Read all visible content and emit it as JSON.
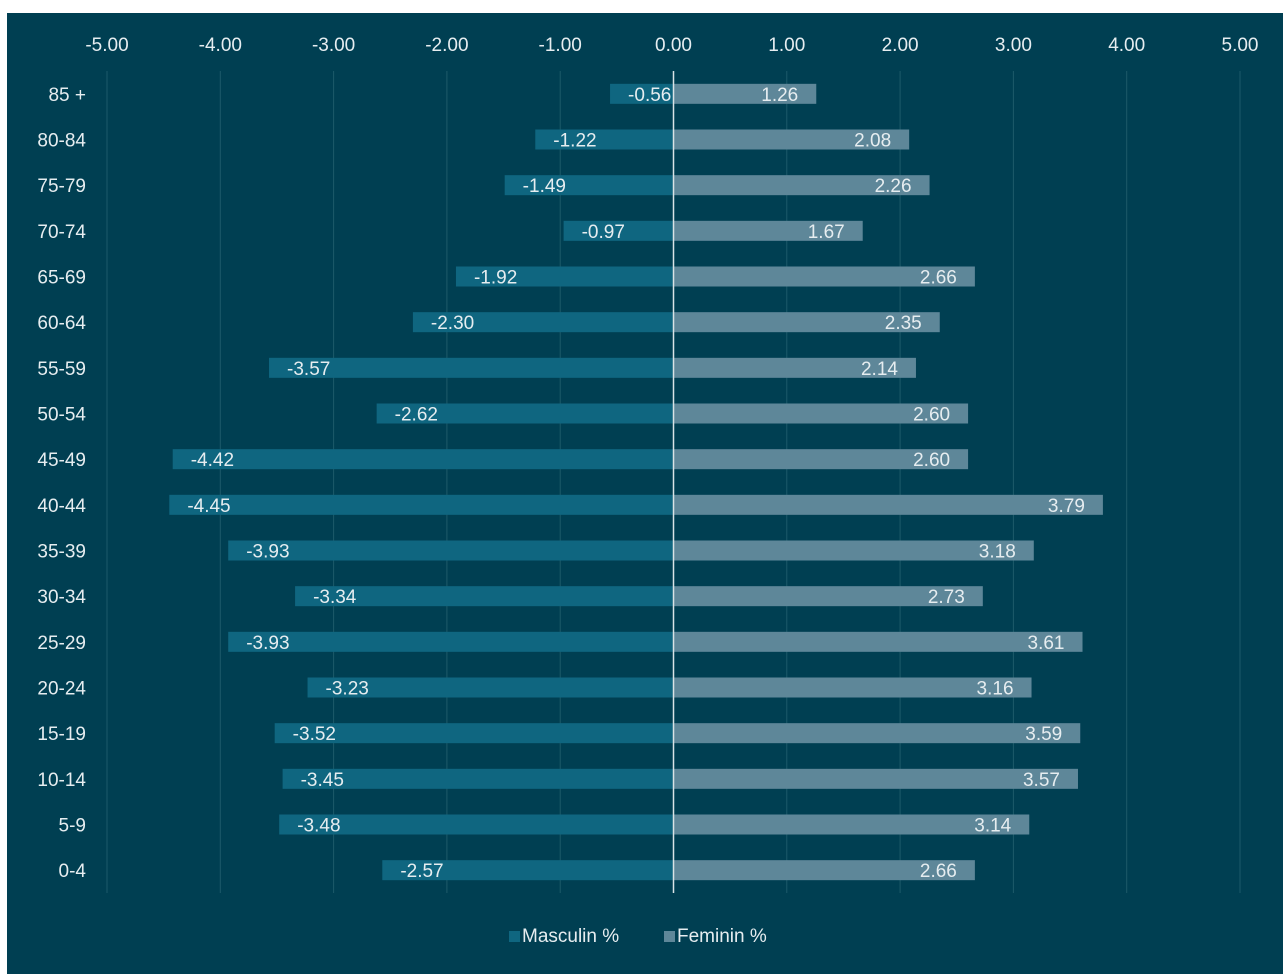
{
  "chart_data": {
    "type": "bar",
    "orientation": "horizontal",
    "stacked": true,
    "title": "",
    "xlabel": "",
    "ylabel": "",
    "xlim": [
      -5,
      5
    ],
    "xticks": [
      -5,
      -4,
      -3,
      -2,
      -1,
      0,
      1,
      2,
      3,
      4,
      5
    ],
    "xtick_labels": [
      "-5.00",
      "-4.00",
      "-3.00",
      "-2.00",
      "-1.00",
      "0.00",
      "1.00",
      "2.00",
      "3.00",
      "4.00",
      "5.00"
    ],
    "x_axis_position": "top",
    "grid": true,
    "legend_position": "bottom-center",
    "categories": [
      "85 +",
      "80-84",
      "75-79",
      "70-74",
      "65-69",
      "60-64",
      "55-59",
      "50-54",
      "45-49",
      "40-44",
      "35-39",
      "30-34",
      "25-29",
      "20-24",
      "15-19",
      "10-14",
      "5-9",
      "0-4"
    ],
    "series": [
      {
        "name": "Masculin %",
        "color": "#0f6680",
        "values": [
          -0.56,
          -1.22,
          -1.49,
          -0.97,
          -1.92,
          -2.3,
          -3.57,
          -2.62,
          -4.42,
          -4.45,
          -3.93,
          -3.34,
          -3.93,
          -3.23,
          -3.52,
          -3.45,
          -3.48,
          -2.57
        ],
        "labels": [
          "-0.56",
          "-1.22",
          "-1.49",
          "-0.97",
          "-1.92",
          "-2.30",
          "-3.57",
          "-2.62",
          "-4.42",
          "-4.45",
          "-3.93",
          "-3.34",
          "-3.93",
          "-3.23",
          "-3.52",
          "-3.45",
          "-3.48",
          "-2.57"
        ]
      },
      {
        "name": "Feminin %",
        "color": "#5e8799",
        "values": [
          1.26,
          2.08,
          2.26,
          1.67,
          2.66,
          2.35,
          2.14,
          2.6,
          2.6,
          3.79,
          3.18,
          2.73,
          3.61,
          3.16,
          3.59,
          3.57,
          3.14,
          2.66
        ],
        "labels": [
          "1.26",
          "2.08",
          "2.26",
          "1.67",
          "2.66",
          "2.35",
          "2.14",
          "2.60",
          "2.60",
          "3.79",
          "3.18",
          "2.73",
          "3.61",
          "3.16",
          "3.59",
          "3.57",
          "3.14",
          "2.66"
        ]
      }
    ],
    "colors": {
      "background": "#003f52",
      "gridline": "#1d5a6a",
      "axis_zero": "#d9e3e6",
      "text": "#e6edf0"
    }
  }
}
